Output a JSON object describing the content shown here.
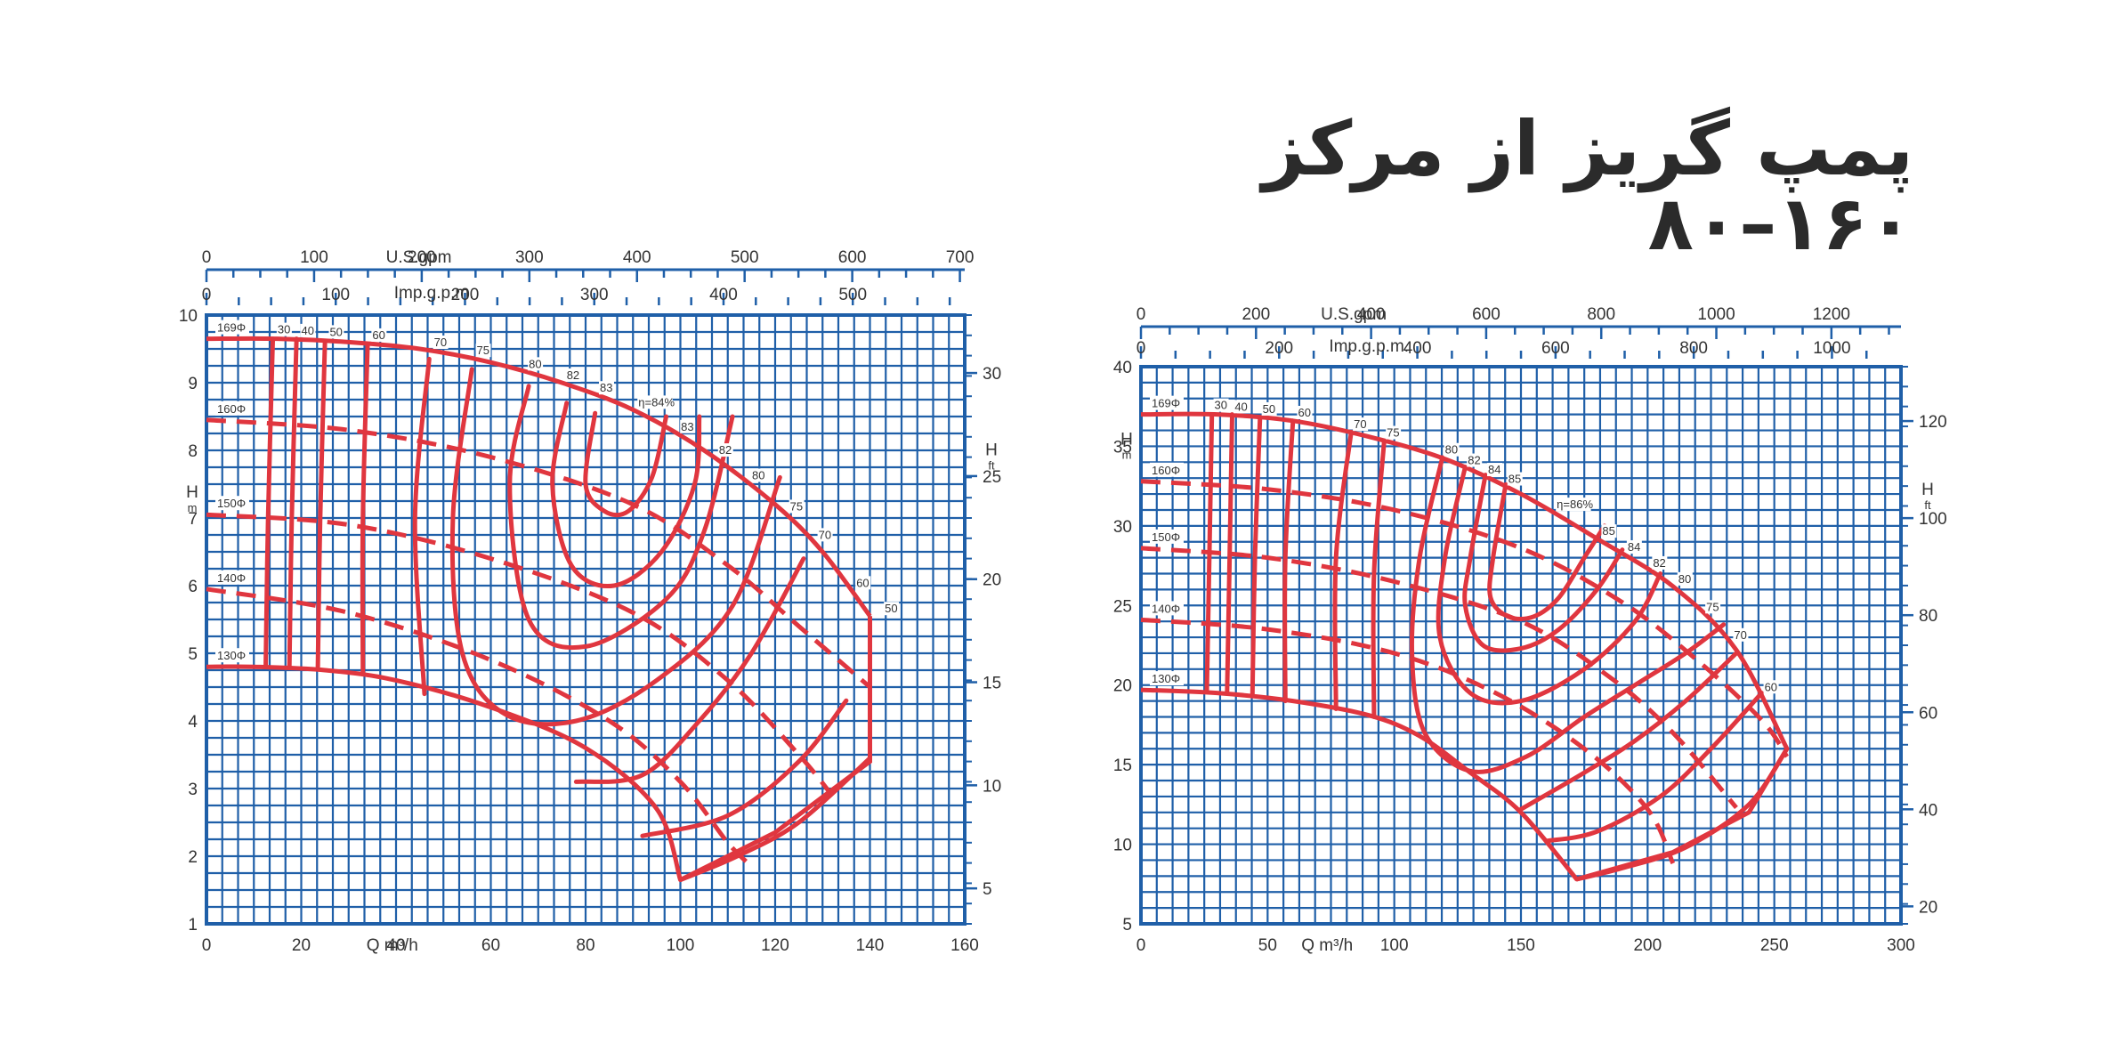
{
  "title": "پمپ گریز از مرکز ۱۶۰–۸۰",
  "colors": {
    "grid": "#1f5fa8",
    "curve": "#e0363f",
    "text": "#333333",
    "background": "#ffffff"
  },
  "chart_data": [
    {
      "type": "line",
      "xlabel": "Q m³/h",
      "x_ticks": [
        "0",
        "20",
        "40",
        "60",
        "80",
        "100",
        "120",
        "140",
        "160"
      ],
      "xlim": [
        0,
        160
      ],
      "ylabel": "H",
      "ylabel_unit": "m",
      "y_ticks": [
        "1",
        "2",
        "3",
        "4",
        "5",
        "6",
        "7",
        "8",
        "9",
        "10"
      ],
      "ylim": [
        1,
        10
      ],
      "y2label": "H",
      "y2label_unit": "ft",
      "y2_ticks": [
        "5",
        "10",
        "15",
        "20",
        "25",
        "30"
      ],
      "y2lim": [
        3.28,
        32.81
      ],
      "top_axis1_label": "U.S.gpm",
      "top_axis1_ticks": [
        "0",
        "100",
        "200",
        "300",
        "400",
        "500",
        "600",
        "700"
      ],
      "top_axis1_max": 704.5,
      "top_axis2_label": "Imp.g.p.m.",
      "top_axis2_ticks": [
        "0",
        "100",
        "200",
        "300",
        "400",
        "500"
      ],
      "top_axis2_max": 586.6,
      "impellers": [
        {
          "label": "169Φ",
          "points": [
            [
              0,
              9.65
            ],
            [
              15,
              9.65
            ],
            [
              30,
              9.6
            ],
            [
              45,
              9.5
            ],
            [
              60,
              9.3
            ],
            [
              75,
              9.0
            ],
            [
              90,
              8.6
            ],
            [
              105,
              8.0
            ],
            [
              120,
              7.2
            ],
            [
              130,
              6.5
            ],
            [
              140,
              5.55
            ]
          ]
        },
        {
          "label": "160Φ",
          "points": [
            [
              0,
              8.45
            ],
            [
              30,
              8.3
            ],
            [
              60,
              7.9
            ],
            [
              90,
              7.2
            ],
            [
              110,
              6.3
            ],
            [
              125,
              5.4
            ],
            [
              140,
              4.5
            ]
          ],
          "dashed": true
        },
        {
          "label": "150Φ",
          "points": [
            [
              0,
              7.05
            ],
            [
              30,
              6.9
            ],
            [
              60,
              6.4
            ],
            [
              90,
              5.6
            ],
            [
              110,
              4.6
            ],
            [
              125,
              3.5
            ],
            [
              132,
              2.9
            ]
          ],
          "dashed": true
        },
        {
          "label": "140Φ",
          "points": [
            [
              0,
              5.95
            ],
            [
              30,
              5.6
            ],
            [
              60,
              4.9
            ],
            [
              85,
              4.0
            ],
            [
              100,
              3.1
            ],
            [
              110,
              2.2
            ],
            [
              115,
              1.85
            ]
          ],
          "dashed": true
        },
        {
          "label": "130Φ",
          "points": [
            [
              0,
              4.8
            ],
            [
              10,
              4.8
            ],
            [
              25,
              4.75
            ],
            [
              40,
              4.6
            ],
            [
              60,
              4.2
            ],
            [
              80,
              3.6
            ],
            [
              95,
              2.7
            ],
            [
              100,
              1.65
            ]
          ]
        }
      ],
      "boundary_right": [
        [
          140,
          5.55
        ],
        [
          140,
          3.4
        ],
        [
          120,
          2.35
        ],
        [
          100,
          1.65
        ]
      ],
      "efficiency_labels": [
        "30",
        "40",
        "50",
        "60",
        "70",
        "75",
        "80",
        "82",
        "83",
        "η=84%",
        "83",
        "82",
        "80",
        "75",
        "70",
        "60",
        "50"
      ],
      "efficiency_contours": [
        {
          "label": "30",
          "points": [
            [
              14,
              9.65
            ],
            [
              13,
              7
            ],
            [
              12.5,
              4.8
            ]
          ]
        },
        {
          "label": "40",
          "points": [
            [
              19,
              9.65
            ],
            [
              18,
              7
            ],
            [
              17.5,
              4.8
            ]
          ]
        },
        {
          "label": "50",
          "points": [
            [
              25,
              9.6
            ],
            [
              24,
              7
            ],
            [
              23.5,
              4.8
            ]
          ]
        },
        {
          "label": "60",
          "points": [
            [
              34,
              9.55
            ],
            [
              33,
              7
            ],
            [
              33,
              4.7
            ]
          ]
        },
        {
          "label": "70",
          "points": [
            [
              47,
              9.35
            ],
            [
              44,
              7
            ],
            [
              46,
              4.4
            ]
          ]
        },
        {
          "label": "75",
          "points": [
            [
              56,
              9.2
            ],
            [
              52,
              7
            ],
            [
              54,
              5
            ],
            [
              63,
              4.1
            ],
            [
              78,
              4.0
            ],
            [
              95,
              4.6
            ],
            [
              111,
              5.7
            ],
            [
              121,
              7.6
            ]
          ]
        },
        {
          "label": "80",
          "points": [
            [
              68,
              8.95
            ],
            [
              64,
              7.5
            ],
            [
              68,
              5.5
            ],
            [
              80,
              5.1
            ],
            [
              97,
              5.8
            ],
            [
              105,
              6.8
            ],
            [
              111,
              8.5
            ]
          ]
        },
        {
          "label": "82",
          "points": [
            [
              76,
              8.7
            ],
            [
              73,
              7.5
            ],
            [
              77,
              6.3
            ],
            [
              86,
              6.0
            ],
            [
              96,
              6.5
            ],
            [
              103,
              7.5
            ],
            [
              104,
              8.5
            ]
          ]
        },
        {
          "label": "83",
          "points": [
            [
              82,
              8.55
            ],
            [
              80,
              7.5
            ],
            [
              84,
              7.1
            ],
            [
              89,
              7.1
            ],
            [
              94,
              7.6
            ],
            [
              97,
              8.5
            ]
          ]
        },
        {
          "label": "70",
          "points": [
            [
              126,
              6.4
            ],
            [
              115,
              5.0
            ],
            [
              104,
              4.0
            ],
            [
              92,
              3.2
            ],
            [
              78,
              3.1
            ]
          ]
        },
        {
          "label": "60",
          "points": [
            [
              135,
              4.3
            ],
            [
              125,
              3.4
            ],
            [
              110,
              2.6
            ],
            [
              92,
              2.3
            ]
          ]
        },
        {
          "label": "50",
          "points": [
            [
              140,
              3.45
            ],
            [
              125,
              2.5
            ],
            [
              112,
              2.0
            ],
            [
              100,
              1.65
            ]
          ]
        }
      ]
    },
    {
      "type": "line",
      "xlabel": "Q m³/h",
      "x_ticks": [
        "0",
        "50",
        "100",
        "150",
        "200",
        "250",
        "300"
      ],
      "xlim": [
        0,
        300
      ],
      "ylabel": "H",
      "ylabel_unit": "m",
      "y_ticks": [
        "5",
        "10",
        "15",
        "20",
        "25",
        "30",
        "35",
        "40"
      ],
      "ylim": [
        5,
        40
      ],
      "y2label": "H",
      "y2label_unit": "ft",
      "y2_ticks": [
        "20",
        "40",
        "60",
        "80",
        "100",
        "120"
      ],
      "y2lim": [
        16.4,
        131.2
      ],
      "top_axis1_label": "U.S.gpm",
      "top_axis1_ticks": [
        "0",
        "200",
        "400",
        "600",
        "800",
        "1000",
        "1200"
      ],
      "top_axis1_max": 1320.9,
      "top_axis2_label": "Imp.g.p.m.",
      "top_axis2_ticks": [
        "0",
        "200",
        "400",
        "600",
        "800",
        "1000"
      ],
      "top_axis2_max": 1099.9,
      "impellers": [
        {
          "label": "169Φ",
          "points": [
            [
              0,
              37
            ],
            [
              30,
              37
            ],
            [
              60,
              36.6
            ],
            [
              90,
              35.6
            ],
            [
              120,
              34.2
            ],
            [
              150,
              32.0
            ],
            [
              180,
              29.2
            ],
            [
              210,
              26.2
            ],
            [
              235,
              22.2
            ],
            [
              255,
              16.0
            ]
          ]
        },
        {
          "label": "160Φ",
          "points": [
            [
              0,
              32.8
            ],
            [
              50,
              32.3
            ],
            [
              100,
              31.0
            ],
            [
              150,
              28.6
            ],
            [
              190,
              25.2
            ],
            [
              220,
              21.5
            ],
            [
              245,
              17.8
            ],
            [
              255,
              15.5
            ]
          ],
          "dashed": true
        },
        {
          "label": "150Φ",
          "points": [
            [
              0,
              28.6
            ],
            [
              50,
              28.0
            ],
            [
              100,
              26.5
            ],
            [
              150,
              24.0
            ],
            [
              185,
              20.5
            ],
            [
              210,
              17.0
            ],
            [
              235,
              12.3
            ]
          ],
          "dashed": true
        },
        {
          "label": "140Φ",
          "points": [
            [
              0,
              24.1
            ],
            [
              50,
              23.5
            ],
            [
              100,
              22.0
            ],
            [
              140,
              19.5
            ],
            [
              175,
              16.0
            ],
            [
              200,
              12.2
            ],
            [
              210,
              8.8
            ]
          ],
          "dashed": true
        },
        {
          "label": "130Φ",
          "points": [
            [
              0,
              19.7
            ],
            [
              30,
              19.5
            ],
            [
              60,
              19.0
            ],
            [
              90,
              18.1
            ],
            [
              110,
              16.8
            ],
            [
              130,
              14.5
            ],
            [
              150,
              12.0
            ],
            [
              172,
              7.8
            ]
          ]
        }
      ],
      "boundary_right": [
        [
          255,
          16.0
        ],
        [
          240,
          12.0
        ],
        [
          210,
          9.5
        ],
        [
          172,
          7.8
        ]
      ],
      "efficiency_labels": [
        "30",
        "40",
        "50",
        "60",
        "70",
        "75",
        "80",
        "82",
        "84",
        "85",
        "η=86%",
        "85",
        "84",
        "82",
        "80",
        "75",
        "70",
        "60"
      ],
      "efficiency_contours": [
        {
          "label": "30",
          "points": [
            [
              28,
              37
            ],
            [
              27,
              28
            ],
            [
              26,
              19.6
            ]
          ]
        },
        {
          "label": "40",
          "points": [
            [
              36,
              37
            ],
            [
              35,
              28
            ],
            [
              34,
              19.5
            ]
          ]
        },
        {
          "label": "50",
          "points": [
            [
              47,
              36.8
            ],
            [
              45,
              28
            ],
            [
              44,
              19.3
            ]
          ]
        },
        {
          "label": "60",
          "points": [
            [
              60,
              36.6
            ],
            [
              57,
              28
            ],
            [
              57,
              19.0
            ]
          ]
        },
        {
          "label": "70",
          "points": [
            [
              83,
              35.9
            ],
            [
              77,
              28
            ],
            [
              77,
              18.5
            ]
          ]
        },
        {
          "label": "75",
          "points": [
            [
              96,
              35.3
            ],
            [
              92,
              27
            ],
            [
              92,
              18.0
            ]
          ]
        },
        {
          "label": "80",
          "points": [
            [
              119,
              34.3
            ],
            [
              110,
              28
            ],
            [
              107,
              22
            ],
            [
              112,
              17
            ],
            [
              130,
              14.6
            ],
            [
              152,
              15.5
            ],
            [
              175,
              18
            ],
            [
              195,
              20
            ],
            [
              215,
              22
            ],
            [
              230,
              23.8
            ]
          ]
        },
        {
          "label": "82",
          "points": [
            [
              128,
              33.7
            ],
            [
              120,
              28
            ],
            [
              118,
              23
            ],
            [
              130,
              19.5
            ],
            [
              150,
              19.0
            ],
            [
              175,
              21
            ],
            [
              195,
              24
            ],
            [
              205,
              27
            ]
          ]
        },
        {
          "label": "84",
          "points": [
            [
              136,
              33.2
            ],
            [
              130,
              28
            ],
            [
              128,
              25
            ],
            [
              135,
              22.5
            ],
            [
              150,
              22.3
            ],
            [
              165,
              23.5
            ],
            [
              180,
              26
            ],
            [
              190,
              28.5
            ]
          ]
        },
        {
          "label": "85",
          "points": [
            [
              144,
              32.6
            ],
            [
              139,
              28
            ],
            [
              138,
              25.5
            ],
            [
              145,
              24.3
            ],
            [
              155,
              24.3
            ],
            [
              165,
              25.5
            ],
            [
              175,
              28
            ],
            [
              183,
              30.0
            ]
          ]
        },
        {
          "label": "75",
          "points": [
            [
              235,
              22.0
            ],
            [
              215,
              19.0
            ],
            [
              195,
              16.5
            ],
            [
              175,
              14.5
            ],
            [
              150,
              12.2
            ]
          ]
        },
        {
          "label": "70",
          "points": [
            [
              245,
              19.5
            ],
            [
              225,
              16.0
            ],
            [
              205,
              13.0
            ],
            [
              180,
              10.8
            ],
            [
              160,
              10.2
            ]
          ]
        },
        {
          "label": "60",
          "points": [
            [
              255,
              16.0
            ],
            [
              240,
              12.5
            ],
            [
              215,
              9.8
            ],
            [
              190,
              8.5
            ],
            [
              172,
              7.8
            ]
          ]
        }
      ]
    }
  ]
}
